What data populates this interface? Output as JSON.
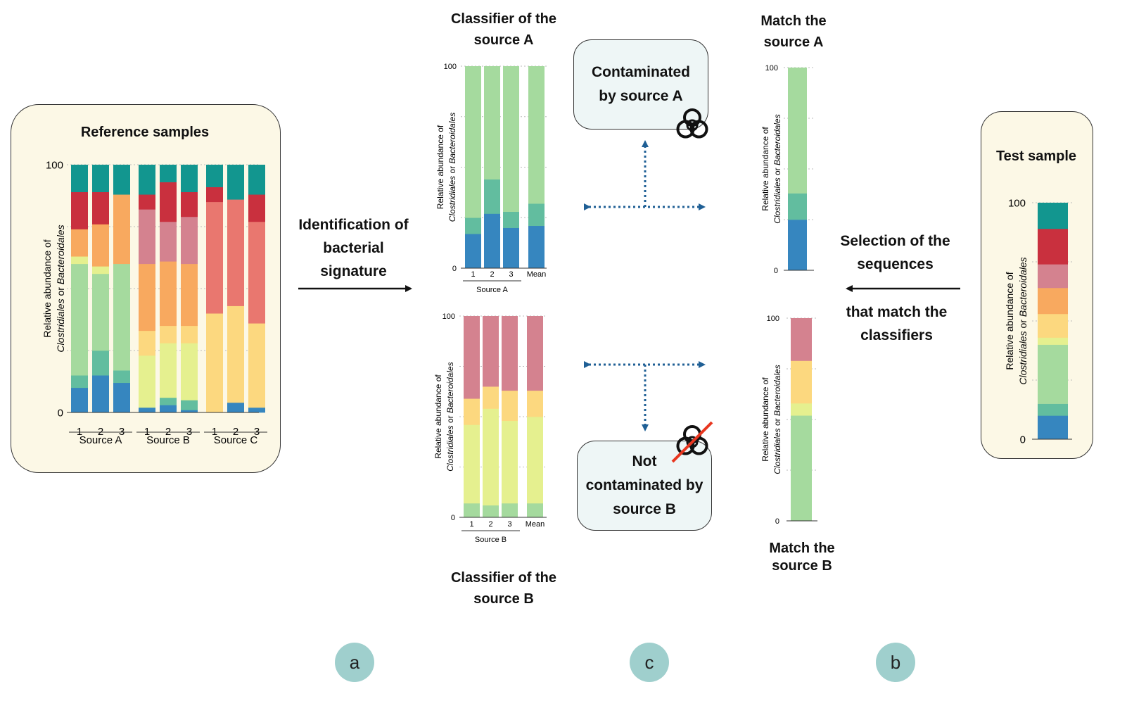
{
  "colors": {
    "teal": "#12968f",
    "red": "#c9303e",
    "pink": "#d4828f",
    "salmon": "#e9776f",
    "orange": "#f8a95f",
    "yellow": "#fcd87f",
    "lightyellow": "#e5f08f",
    "lightgreen": "#a5da9e",
    "mint": "#62bd9f",
    "blue": "#3686bf"
  },
  "texts": {
    "reference_title": "Reference samples",
    "arrow_left_label": [
      "Identification of",
      "bacterial",
      "signature"
    ],
    "classifier_a_title": [
      "Classifier of the",
      "source A"
    ],
    "classifier_b_title": [
      "Classifier of the",
      "source B"
    ],
    "contaminated_a": [
      "Contaminated",
      "by source A"
    ],
    "not_contaminated_b": [
      "Not",
      "contaminated by",
      "source B"
    ],
    "match_a_title": [
      "Match the",
      "source A"
    ],
    "match_b_title": [
      "Match the",
      "source B"
    ],
    "selection_label": [
      "Selection of the",
      "sequences",
      "that match the",
      "classifiers"
    ],
    "test_title": "Test sample",
    "label_a": "a",
    "label_b": "b",
    "label_c": "c",
    "ylabel_line1": "Relative abundance of",
    "ylabel_line2_part1": "Clostridiales",
    "ylabel_line2_part2": " or ",
    "ylabel_line2_part3": "Bacteroidales",
    "ymax": "100",
    "ymin": "0"
  },
  "chart_data": [
    {
      "id": "reference",
      "type": "bar",
      "stacked": true,
      "ylim": [
        0,
        100
      ],
      "categories": [
        "1",
        "2",
        "3",
        "1",
        "2",
        "3",
        "1",
        "2",
        "3"
      ],
      "groups": [
        {
          "label": "Source A",
          "categories": [
            "1",
            "2",
            "3"
          ]
        },
        {
          "label": "Source B",
          "categories": [
            "1",
            "2",
            "3"
          ]
        },
        {
          "label": "Source C",
          "categories": [
            "1",
            "2",
            "3"
          ]
        }
      ],
      "stack_order": [
        "blue",
        "mint",
        "lightgreen",
        "lightyellow",
        "yellow",
        "orange",
        "pink",
        "salmon",
        "red",
        "teal"
      ],
      "bars": [
        {
          "blue": 10,
          "mint": 5,
          "lightgreen": 45,
          "lightyellow": 3,
          "yellow": 0,
          "orange": 11,
          "pink": 0,
          "salmon": 0,
          "red": 15,
          "teal": 11
        },
        {
          "blue": 15,
          "mint": 10,
          "lightgreen": 31,
          "lightyellow": 3,
          "yellow": 0,
          "orange": 17,
          "pink": 0,
          "salmon": 0,
          "red": 13,
          "teal": 11
        },
        {
          "blue": 12,
          "mint": 5,
          "lightgreen": 43,
          "lightyellow": 0,
          "yellow": 0,
          "orange": 28,
          "pink": 0,
          "salmon": 0,
          "red": 0,
          "teal": 12
        },
        {
          "blue": 2,
          "mint": 0,
          "lightgreen": 0,
          "lightyellow": 21,
          "yellow": 10,
          "orange": 27,
          "pink": 22,
          "salmon": 0,
          "red": 6,
          "teal": 12
        },
        {
          "blue": 3,
          "mint": 3,
          "lightgreen": 0,
          "lightyellow": 22,
          "yellow": 7,
          "orange": 26,
          "pink": 16,
          "salmon": 0,
          "red": 16,
          "teal": 7
        },
        {
          "blue": 1,
          "mint": 4,
          "lightgreen": 0,
          "lightyellow": 23,
          "yellow": 7,
          "orange": 25,
          "pink": 19,
          "salmon": 0,
          "red": 10,
          "teal": 11
        },
        {
          "blue": 0,
          "mint": 0,
          "lightgreen": 0,
          "lightyellow": 0,
          "yellow": 40,
          "orange": 0,
          "pink": 0,
          "salmon": 45,
          "red": 6,
          "teal": 9
        },
        {
          "blue": 4,
          "mint": 0,
          "lightgreen": 0,
          "lightyellow": 0,
          "yellow": 39,
          "orange": 0,
          "pink": 0,
          "salmon": 43,
          "red": 0,
          "teal": 14
        },
        {
          "blue": 2,
          "mint": 0,
          "lightgreen": 0,
          "lightyellow": 0,
          "yellow": 34,
          "orange": 0,
          "pink": 0,
          "salmon": 41,
          "red": 11,
          "teal": 12
        }
      ]
    },
    {
      "id": "classifier_a",
      "type": "bar",
      "stacked": true,
      "ylim": [
        0,
        100
      ],
      "categories": [
        "1",
        "2",
        "3",
        "Mean"
      ],
      "group_label": "Source A",
      "stack_order": [
        "blue",
        "mint",
        "lightgreen"
      ],
      "bars": [
        {
          "blue": 17,
          "mint": 8,
          "lightgreen": 75
        },
        {
          "blue": 27,
          "mint": 17,
          "lightgreen": 56
        },
        {
          "blue": 20,
          "mint": 8,
          "lightgreen": 72
        },
        {
          "blue": 21,
          "mint": 11,
          "lightgreen": 68
        }
      ]
    },
    {
      "id": "classifier_b",
      "type": "bar",
      "stacked": true,
      "ylim": [
        0,
        100
      ],
      "categories": [
        "1",
        "2",
        "3",
        "Mean"
      ],
      "group_label": "Source B",
      "stack_order": [
        "lightgreen",
        "lightyellow",
        "yellow",
        "pink"
      ],
      "bars": [
        {
          "lightgreen": 7,
          "lightyellow": 39,
          "yellow": 13,
          "pink": 41
        },
        {
          "lightgreen": 6,
          "lightyellow": 48,
          "yellow": 11,
          "pink": 35
        },
        {
          "lightgreen": 7,
          "lightyellow": 41,
          "yellow": 15,
          "pink": 37
        },
        {
          "lightgreen": 7,
          "lightyellow": 43,
          "yellow": 13,
          "pink": 37
        }
      ]
    },
    {
      "id": "match_a",
      "type": "bar",
      "stacked": true,
      "ylim": [
        0,
        100
      ],
      "categories": [
        ""
      ],
      "stack_order": [
        "blue",
        "mint",
        "lightgreen"
      ],
      "bars": [
        {
          "blue": 25,
          "mint": 13,
          "lightgreen": 62
        }
      ]
    },
    {
      "id": "match_b",
      "type": "bar",
      "stacked": true,
      "ylim": [
        0,
        100
      ],
      "categories": [
        ""
      ],
      "stack_order": [
        "lightgreen",
        "lightyellow",
        "yellow",
        "pink"
      ],
      "bars": [
        {
          "lightgreen": 52,
          "lightyellow": 6,
          "yellow": 21,
          "pink": 21
        }
      ]
    },
    {
      "id": "test",
      "type": "bar",
      "stacked": true,
      "ylim": [
        0,
        100
      ],
      "categories": [
        ""
      ],
      "stack_order": [
        "blue",
        "mint",
        "lightgreen",
        "lightyellow",
        "yellow",
        "orange",
        "pink",
        "red",
        "teal"
      ],
      "bars": [
        {
          "blue": 10,
          "mint": 5,
          "lightgreen": 25,
          "lightyellow": 3,
          "yellow": 10,
          "orange": 11,
          "pink": 10,
          "red": 15,
          "teal": 11
        }
      ]
    }
  ]
}
